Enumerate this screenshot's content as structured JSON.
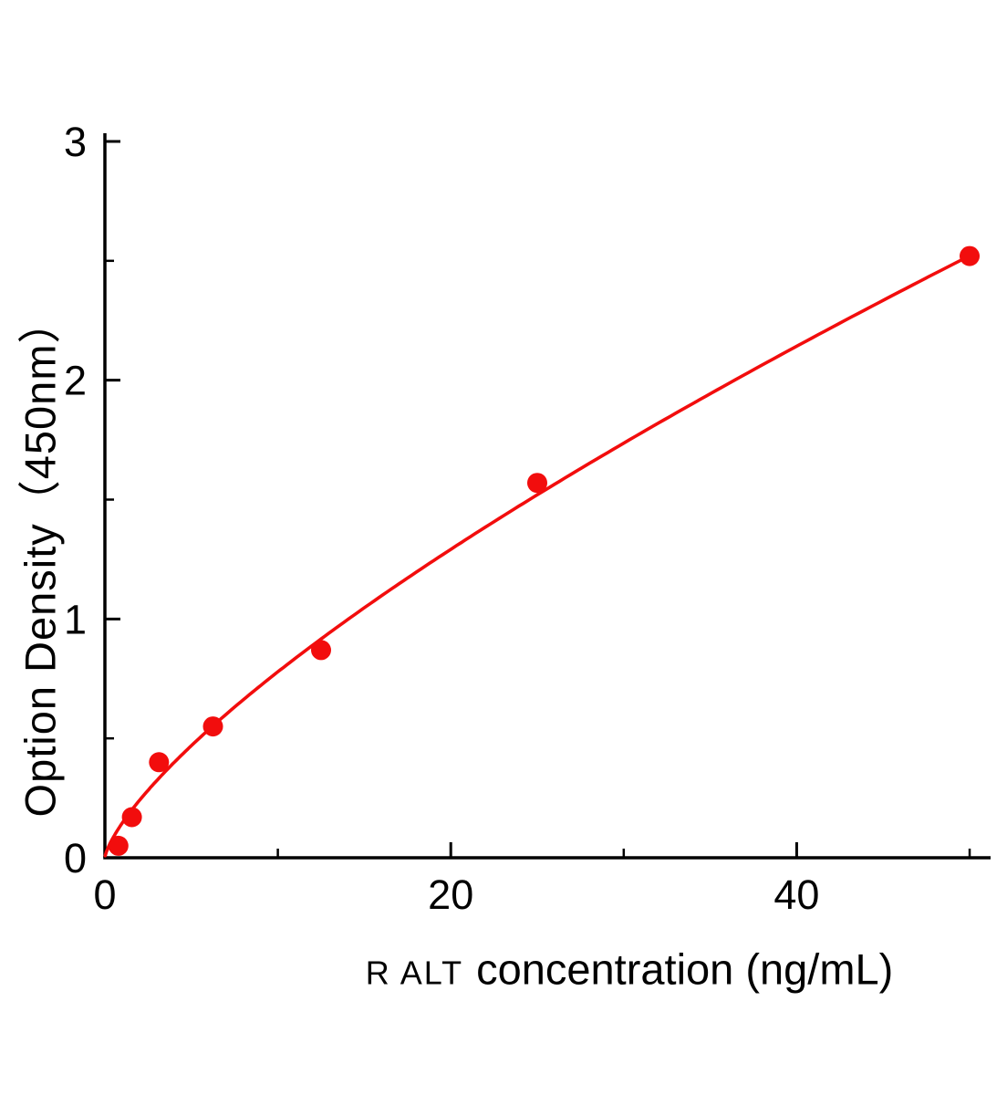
{
  "page": {
    "background": "#ffffff"
  },
  "chart_data": {
    "type": "scatter",
    "title": "",
    "xlabel_prefix": "R ALT",
    "xlabel_main": "concentration (ng/mL)",
    "ylabel": "Option Density（450nm）",
    "x": [
      0.78,
      1.56,
      3.125,
      6.25,
      12.5,
      25,
      50
    ],
    "y": [
      0.05,
      0.17,
      0.4,
      0.55,
      0.87,
      1.57,
      2.52
    ],
    "fit": {
      "type": "power",
      "a": 0.145,
      "b": 0.73
    },
    "xlim": [
      0,
      51
    ],
    "ylim": [
      0,
      3
    ],
    "xticks": [
      0,
      20,
      40
    ],
    "xminor": [
      10,
      30,
      50
    ],
    "yticks": [
      0,
      1,
      2,
      3
    ],
    "yminor": [
      0.5,
      1.5,
      2.5
    ],
    "grid": false,
    "legend": null,
    "point_color": "#f20d0d",
    "line_color": "#f20d0d",
    "axis_color": "#000000"
  }
}
